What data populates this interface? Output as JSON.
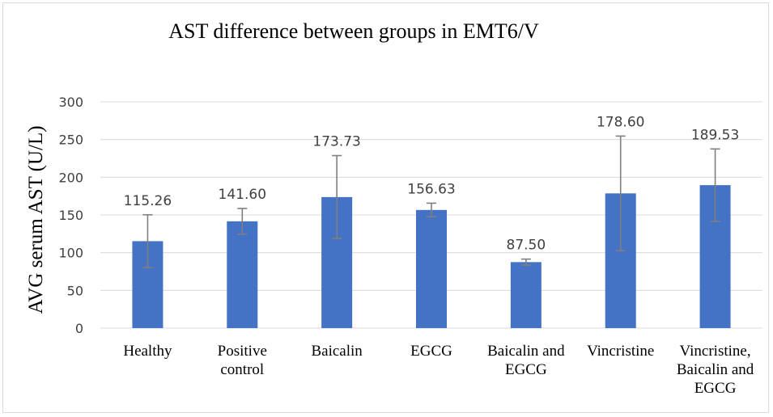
{
  "chart_data": {
    "type": "bar",
    "title": "AST difference between groups in EMT6/V",
    "ylabel": "AVG serum AST (U/L)",
    "xlabel": "",
    "ylim": [
      0,
      300
    ],
    "yticks": [
      0,
      50,
      100,
      150,
      200,
      250,
      300
    ],
    "grid": true,
    "legend": "none",
    "categories": [
      [
        "Healthy"
      ],
      [
        "Positive",
        "control"
      ],
      [
        "Baicalin"
      ],
      [
        "EGCG"
      ],
      [
        "Baicalin and",
        "EGCG"
      ],
      [
        "Vincristine"
      ],
      [
        "Vincristine,",
        "Baicalin and",
        "EGCG"
      ]
    ],
    "values": [
      115.26,
      141.6,
      173.73,
      156.63,
      87.5,
      178.6,
      189.53
    ],
    "value_labels": [
      "115.26",
      "141.60",
      "173.73",
      "156.63",
      "87.50",
      "178.60",
      "189.53"
    ],
    "error": [
      35,
      17,
      55,
      9,
      4,
      76,
      48
    ],
    "colors": {
      "bar": "#4472c4",
      "grid": "#d9d9d9",
      "error": "#7f7f7f"
    }
  }
}
